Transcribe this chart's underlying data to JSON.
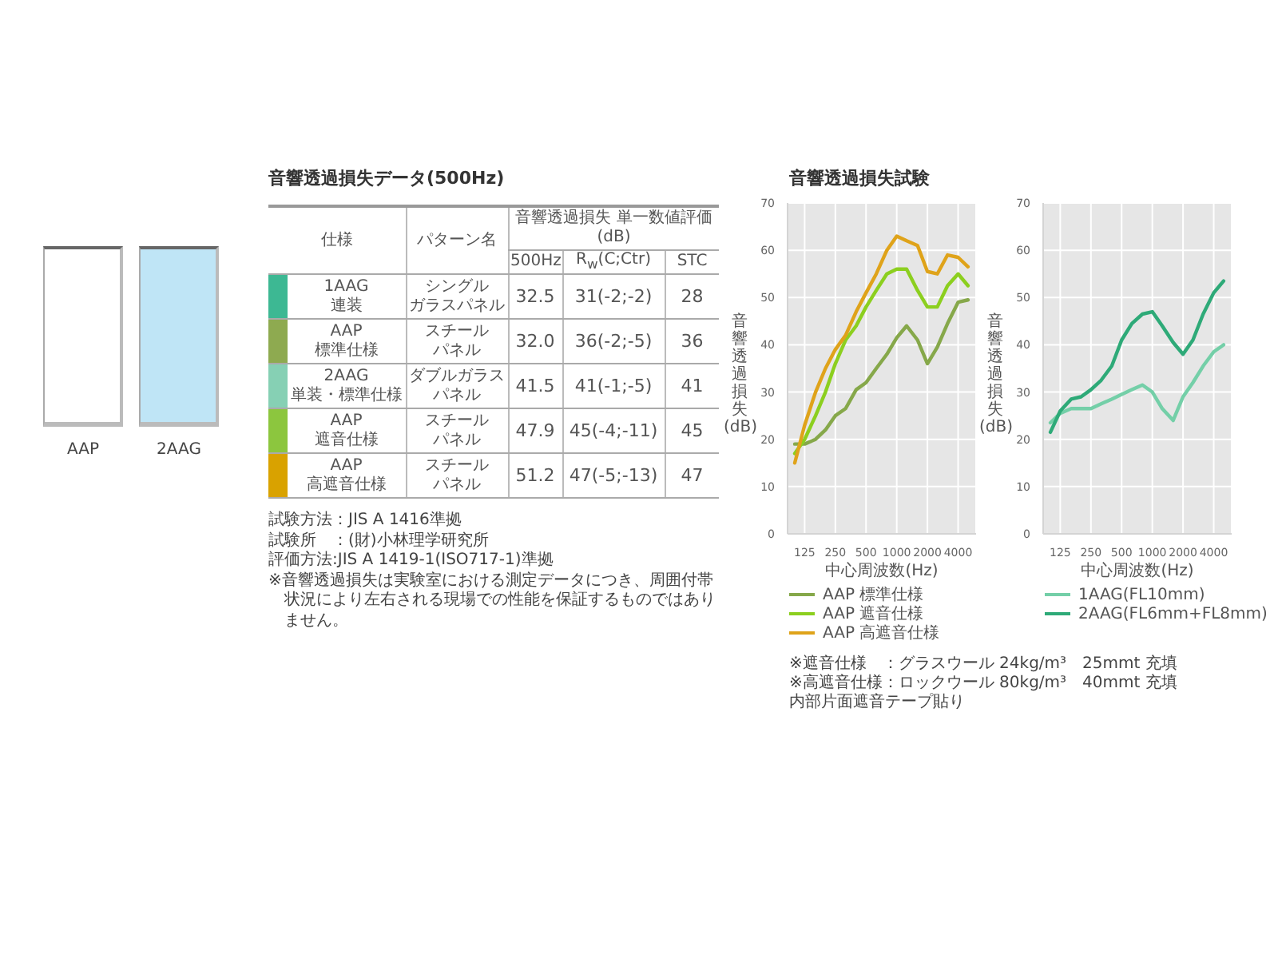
{
  "chart_data": [
    {
      "type": "other",
      "categories": [
        "AAP",
        "2AAG"
      ],
      "colors": [
        "#ffffff",
        "#bfe5f6"
      ]
    },
    {
      "type": "other",
      "title": "音響透過損失データ(500Hz)",
      "ylabel": "仕様",
      "xlabel": "音響透過損失 単一数値評価(dB)",
      "categories": [
        "パターン名",
        "500Hz",
        "R$_{w}$(C;Ctr)",
        "STC"
      ],
      "y_categories": [
        "1AAG 連装",
        "AAP 標準仕様",
        "2AAG 単装・標準仕様",
        "AAP 遮音仕様",
        "AAP 高遮音仕様"
      ],
      "colors": [
        "#3db893",
        "#8eaa50",
        "#86d0b4",
        "#8cc63e",
        "#d9a200"
      ],
      "cell_labels": [
        [
          "シングルガラスパネル",
          "32.5",
          "31(-2;-2)",
          "28"
        ],
        [
          "スチールパネル",
          "32.0",
          "36(-2;-5)",
          "36"
        ],
        [
          "ダブルガラスパネル",
          "41.5",
          "41(-1;-5)",
          "41"
        ],
        [
          "スチールパネル",
          "47.9",
          "45(-4;-11)",
          "45"
        ],
        [
          "スチールパネル",
          "51.2",
          "47(-5;-13)",
          "47"
        ]
      ],
      "annotations": [
        "試験方法：JIS A 1416準拠",
        "試験所　：(財)小林理学研究所",
        "評価方法:JIS A 1419-1(ISO717-1)準拠",
        "※音響透過損失は実験室における測定データにつき、周囲付帯状況により左右される現場での性能を保証するものではありません。"
      ]
    },
    {
      "type": "line",
      "title": "音響透過損失試験",
      "xlabel": "中心周波数(Hz)",
      "ylabel": "音響透過損失(dB)",
      "x": [
        100,
        125,
        160,
        200,
        250,
        315,
        400,
        500,
        630,
        800,
        1000,
        1250,
        1600,
        2000,
        2500,
        3150,
        4000,
        5000
      ],
      "series": [
        {
          "name": "AAP 標準仕様",
          "color": "#86a84a",
          "values": [
            19,
            19,
            20,
            22,
            25,
            26.5,
            30.5,
            32,
            35,
            38,
            41.5,
            44,
            41,
            36,
            39.5,
            44.5,
            49,
            49.5
          ]
        },
        {
          "name": "AAP 遮音仕様",
          "color": "#8ccf1f",
          "values": [
            17,
            20,
            25,
            30,
            36,
            41,
            44,
            48,
            51.5,
            55,
            56,
            56,
            51.5,
            48,
            48,
            52.5,
            55,
            52.5
          ]
        },
        {
          "name": "AAP 高遮音仕様",
          "color": "#dfa31a",
          "values": [
            15,
            23,
            30,
            35,
            39,
            42,
            47,
            51,
            55,
            60,
            63,
            62,
            61,
            55.5,
            55,
            59,
            58.5,
            56.5
          ]
        }
      ],
      "xlim": [
        85,
        6000
      ],
      "xticks": [
        125,
        250,
        500,
        1000,
        2000,
        4000
      ],
      "ylim": [
        0,
        70
      ],
      "yticks": [
        0,
        10,
        20,
        30,
        40,
        50,
        60,
        70
      ],
      "log": "x",
      "grid": true,
      "legend": "bottom",
      "annotations": [
        "※遮音仕様　：グラスウール 24kg/m³　25mmt 充填",
        "※高遮音仕様：ロックウール 80kg/m³　40mmt 充填",
        "内部片面遮音テープ貼り"
      ]
    },
    {
      "type": "line",
      "xlabel": "中心周波数(Hz)",
      "ylabel": "音響透過損失(dB)",
      "x": [
        100,
        125,
        160,
        200,
        250,
        315,
        400,
        500,
        630,
        800,
        1000,
        1250,
        1600,
        2000,
        2500,
        3150,
        4000,
        5000
      ],
      "series": [
        {
          "name": "1AAG(FL10mm)",
          "color": "#74cfa8",
          "values": [
            23.5,
            25.5,
            26.5,
            26.5,
            26.5,
            27.5,
            28.5,
            29.5,
            30.5,
            31.5,
            30,
            26.5,
            24,
            29,
            32,
            35.5,
            38.5,
            40
          ]
        },
        {
          "name": "2AAG(FL6mm+FL8mm)",
          "color": "#2eaa78",
          "values": [
            21.5,
            26,
            28.5,
            29,
            30.5,
            32.5,
            35.5,
            41,
            44.5,
            46.5,
            47,
            44,
            40.5,
            38,
            41,
            46.5,
            51,
            53.5
          ]
        }
      ],
      "xlim": [
        85,
        6000
      ],
      "xticks": [
        125,
        250,
        500,
        1000,
        2000,
        4000
      ],
      "ylim": [
        0,
        70
      ],
      "yticks": [
        0,
        10,
        20,
        30,
        40,
        50,
        60,
        70
      ],
      "log": "x",
      "grid": true,
      "legend": "bottom"
    }
  ]
}
